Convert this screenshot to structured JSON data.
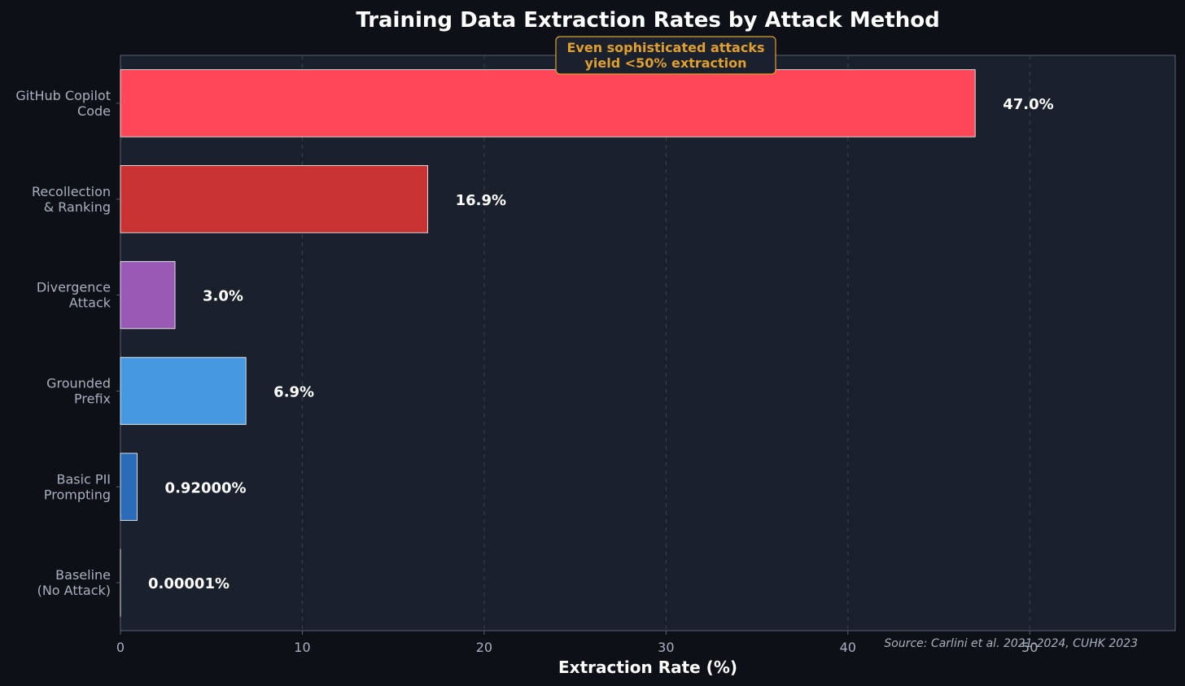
{
  "chart_data": {
    "type": "bar",
    "orientation": "horizontal",
    "title": "Training Data Extraction Rates by Attack Method",
    "xlabel": "Extraction Rate (%)",
    "ylabel": "",
    "xlim": [
      0,
      58
    ],
    "xticks": [
      0,
      10,
      20,
      30,
      40,
      50
    ],
    "grid": "vertical-dashed",
    "categories": [
      [
        "GitHub Copilot",
        "Code"
      ],
      [
        "Recollection",
        "& Ranking"
      ],
      [
        "Divergence",
        "Attack"
      ],
      [
        "Grounded",
        "Prefix"
      ],
      [
        "Basic PII",
        "Prompting"
      ],
      [
        "Baseline",
        "(No Attack)"
      ]
    ],
    "values": [
      47.0,
      16.9,
      3.0,
      6.9,
      0.92,
      1e-05
    ],
    "value_labels": [
      "47.0%",
      "16.9%",
      "3.0%",
      "6.9%",
      "0.92000%",
      "0.00001%"
    ],
    "colors": [
      "#ff4757",
      "#c83232",
      "#9b59b6",
      "#4499e0",
      "#2b6cb8",
      "#2b6cb8"
    ],
    "annotation": [
      "Even sophisticated attacks",
      "yield <50% extraction"
    ],
    "source": "Source: Carlini et al. 2021-2024, CUHK 2023"
  },
  "theme": {
    "background": "#0d1117",
    "plot_background": "#1a202c",
    "axis_color": "#5a6272",
    "grid_color": "#3a4252",
    "annotation_color": "#e0a030"
  }
}
